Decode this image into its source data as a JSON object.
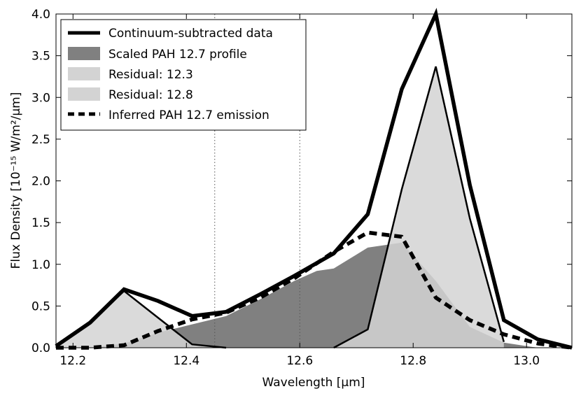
{
  "chart_data": {
    "type": "line",
    "xlabel": "Wavelength [μm]",
    "ylabel": "Flux Density [10⁻¹⁵ W/m²/μm]",
    "xlim": [
      12.17,
      13.08
    ],
    "ylim": [
      0.0,
      4.0
    ],
    "xticks": [
      12.2,
      12.4,
      12.6,
      12.8,
      13.0
    ],
    "xtick_labels": [
      "12.2",
      "12.4",
      "12.6",
      "12.8",
      "13.0"
    ],
    "yticks": [
      0.0,
      0.5,
      1.0,
      1.5,
      2.0,
      2.5,
      3.0,
      3.5,
      4.0
    ],
    "ytick_labels": [
      "0.0",
      "0.5",
      "1.0",
      "1.5",
      "2.0",
      "2.5",
      "3.0",
      "3.5",
      "4.0"
    ],
    "vlines": [
      12.45,
      12.6
    ],
    "legend": {
      "position": "top-left",
      "entries": [
        "Continuum-subtracted data",
        "Scaled PAH 12.7 profile",
        "Residual: 12.3",
        "Residual: 12.8",
        "Inferred PAH 12.7 emission"
      ]
    },
    "series": [
      {
        "name": "Continuum-subtracted data",
        "style": "thick-line",
        "x": [
          12.17,
          12.23,
          12.29,
          12.35,
          12.41,
          12.47,
          12.53,
          12.59,
          12.66,
          12.72,
          12.78,
          12.84,
          12.9,
          12.96,
          13.02,
          13.08
        ],
        "y": [
          0.02,
          0.3,
          0.7,
          0.56,
          0.38,
          0.43,
          0.64,
          0.86,
          1.13,
          1.6,
          3.1,
          4.0,
          1.95,
          0.33,
          0.1,
          0.0
        ]
      },
      {
        "name": "Scaled PAH 12.7 profile",
        "style": "filled-dark",
        "x": [
          12.23,
          12.29,
          12.35,
          12.41,
          12.47,
          12.53,
          12.59,
          12.63,
          12.66,
          12.72,
          12.78,
          12.84,
          12.9,
          12.96,
          13.02
        ],
        "y": [
          0.0,
          0.05,
          0.18,
          0.28,
          0.38,
          0.58,
          0.8,
          0.92,
          0.95,
          1.2,
          1.26,
          0.8,
          0.25,
          0.06,
          0.0
        ]
      },
      {
        "name": "Residual: 12.3",
        "style": "filled-light-outline",
        "x": [
          12.17,
          12.23,
          12.29,
          12.35,
          12.41,
          12.47
        ],
        "y": [
          0.02,
          0.3,
          0.68,
          0.36,
          0.04,
          0.0
        ]
      },
      {
        "name": "Residual: 12.8",
        "style": "filled-light-outline",
        "x": [
          12.66,
          12.72,
          12.78,
          12.84,
          12.9,
          12.96
        ],
        "y": [
          0.0,
          0.22,
          1.9,
          3.37,
          1.55,
          0.07
        ]
      },
      {
        "name": "Inferred PAH 12.7 emission",
        "style": "dashed",
        "x": [
          12.17,
          12.23,
          12.29,
          12.35,
          12.41,
          12.47,
          12.53,
          12.59,
          12.66,
          12.72,
          12.78,
          12.84,
          12.9,
          12.96,
          13.02,
          13.08
        ],
        "y": [
          0.0,
          0.0,
          0.03,
          0.2,
          0.34,
          0.42,
          0.6,
          0.83,
          1.15,
          1.38,
          1.33,
          0.6,
          0.33,
          0.16,
          0.05,
          0.0
        ]
      }
    ]
  }
}
